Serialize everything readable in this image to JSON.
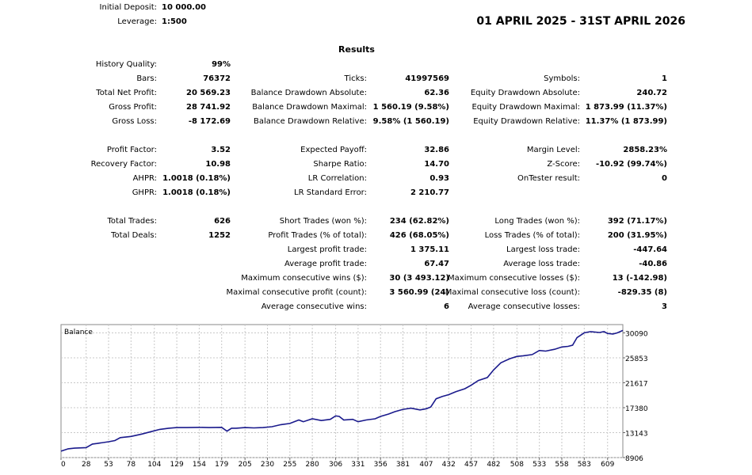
{
  "header": {
    "initial_deposit_label": "Initial Deposit:",
    "initial_deposit_value": "10 000.00",
    "leverage_label": "Leverage:",
    "leverage_value": "1:500",
    "period": "01 APRIL 2025 - 31ST APRIL 2026",
    "results_title": "Results"
  },
  "stats": [
    {
      "col": 0,
      "row": 0,
      "label": "History Quality:",
      "value": "99%"
    },
    {
      "col": 0,
      "row": 1,
      "label": "Bars:",
      "value": "76372"
    },
    {
      "col": 1,
      "row": 1,
      "label": "Ticks:",
      "value": "41997569"
    },
    {
      "col": 2,
      "row": 1,
      "label": "Symbols:",
      "value": "1"
    },
    {
      "col": 0,
      "row": 2,
      "label": "Total Net Profit:",
      "value": "20 569.23"
    },
    {
      "col": 1,
      "row": 2,
      "label": "Balance Drawdown Absolute:",
      "value": "62.36"
    },
    {
      "col": 2,
      "row": 2,
      "label": "Equity Drawdown Absolute:",
      "value": "240.72"
    },
    {
      "col": 0,
      "row": 3,
      "label": "Gross Profit:",
      "value": "28 741.92"
    },
    {
      "col": 1,
      "row": 3,
      "label": "Balance Drawdown Maximal:",
      "value": "1 560.19 (9.58%)"
    },
    {
      "col": 2,
      "row": 3,
      "label": "Equity Drawdown Maximal:",
      "value": "1 873.99 (11.37%)"
    },
    {
      "col": 0,
      "row": 4,
      "label": "Gross Loss:",
      "value": "-8 172.69"
    },
    {
      "col": 1,
      "row": 4,
      "label": "Balance Drawdown Relative:",
      "value": "9.58% (1 560.19)"
    },
    {
      "col": 2,
      "row": 4,
      "label": "Equity Drawdown Relative:",
      "value": "11.37% (1 873.99)"
    },
    {
      "col": 0,
      "row": 6,
      "label": "Profit Factor:",
      "value": "3.52"
    },
    {
      "col": 1,
      "row": 6,
      "label": "Expected Payoff:",
      "value": "32.86"
    },
    {
      "col": 2,
      "row": 6,
      "label": "Margin Level:",
      "value": "2858.23%"
    },
    {
      "col": 0,
      "row": 7,
      "label": "Recovery Factor:",
      "value": "10.98"
    },
    {
      "col": 1,
      "row": 7,
      "label": "Sharpe Ratio:",
      "value": "14.70"
    },
    {
      "col": 2,
      "row": 7,
      "label": "Z-Score:",
      "value": "-10.92 (99.74%)"
    },
    {
      "col": 0,
      "row": 8,
      "label": "AHPR:",
      "value": "1.0018 (0.18%)"
    },
    {
      "col": 1,
      "row": 8,
      "label": "LR Correlation:",
      "value": "0.93"
    },
    {
      "col": 2,
      "row": 8,
      "label": "OnTester result:",
      "value": "0"
    },
    {
      "col": 0,
      "row": 9,
      "label": "GHPR:",
      "value": "1.0018 (0.18%)"
    },
    {
      "col": 1,
      "row": 9,
      "label": "LR Standard Error:",
      "value": "2 210.77"
    },
    {
      "col": 0,
      "row": 11,
      "label": "Total Trades:",
      "value": "626"
    },
    {
      "col": 1,
      "row": 11,
      "label": "Short Trades (won %):",
      "value": "234 (62.82%)"
    },
    {
      "col": 2,
      "row": 11,
      "label": "Long Trades (won %):",
      "value": "392 (71.17%)"
    },
    {
      "col": 0,
      "row": 12,
      "label": "Total Deals:",
      "value": "1252"
    },
    {
      "col": 1,
      "row": 12,
      "label": "Profit Trades (% of total):",
      "value": "426 (68.05%)"
    },
    {
      "col": 2,
      "row": 12,
      "label": "Loss Trades (% of total):",
      "value": "200 (31.95%)"
    },
    {
      "col": 1,
      "row": 13,
      "label": "Largest profit trade:",
      "value": "1 375.11"
    },
    {
      "col": 2,
      "row": 13,
      "label": "Largest loss trade:",
      "value": "-447.64"
    },
    {
      "col": 1,
      "row": 14,
      "label": "Average profit trade:",
      "value": "67.47"
    },
    {
      "col": 2,
      "row": 14,
      "label": "Average loss trade:",
      "value": "-40.86"
    },
    {
      "col": 1,
      "row": 15,
      "label": "Maximum consecutive wins ($):",
      "value": "30 (3 493.12)"
    },
    {
      "col": 2,
      "row": 15,
      "label": "Maximum consecutive losses ($):",
      "value": "13 (-142.98)"
    },
    {
      "col": 1,
      "row": 16,
      "label": "Maximal consecutive profit (count):",
      "value": "3 560.99 (24)"
    },
    {
      "col": 2,
      "row": 16,
      "label": "Maximal consecutive loss (count):",
      "value": "-829.35 (8)"
    },
    {
      "col": 1,
      "row": 17,
      "label": "Average consecutive wins:",
      "value": "6"
    },
    {
      "col": 2,
      "row": 17,
      "label": "Average consecutive losses:",
      "value": "3"
    }
  ],
  "chart_data": {
    "type": "line",
    "title": "Balance",
    "line_color": "#1a1a8c",
    "grid": true,
    "xlim": [
      0,
      626
    ],
    "ylim": [
      8906,
      31500
    ],
    "x_ticks": [
      0,
      28,
      53,
      78,
      104,
      129,
      154,
      179,
      205,
      230,
      255,
      280,
      306,
      331,
      356,
      381,
      407,
      432,
      457,
      482,
      508,
      533,
      558,
      583,
      609
    ],
    "y_ticks": [
      8906,
      13143,
      17380,
      21617,
      25853,
      30090
    ],
    "series": [
      {
        "x": [
          0,
          8,
          15,
          28,
          35,
          40,
          53,
          60,
          66,
          78,
          90,
          100,
          110,
          120,
          129,
          140,
          154,
          165,
          179,
          185,
          190,
          195,
          205,
          215,
          225,
          235,
          245,
          255,
          265,
          270,
          280,
          290,
          300,
          306,
          310,
          315,
          325,
          331,
          340,
          350,
          356,
          365,
          372,
          381,
          390,
          400,
          407,
          412,
          418,
          425,
          432,
          440,
          450,
          457,
          465,
          475,
          482,
          490,
          500,
          508,
          515,
          525,
          533,
          540,
          550,
          558,
          565,
          570,
          575,
          583,
          590,
          600,
          605,
          609,
          615,
          620,
          626
        ],
        "values": [
          10000,
          10400,
          10500,
          10600,
          11200,
          11300,
          11600,
          11800,
          12300,
          12500,
          12900,
          13300,
          13700,
          13900,
          14000,
          14000,
          14050,
          14000,
          14050,
          13400,
          13900,
          13900,
          14000,
          13950,
          14000,
          14150,
          14500,
          14700,
          15300,
          15000,
          15500,
          15200,
          15400,
          16000,
          15900,
          15300,
          15400,
          15000,
          15300,
          15500,
          15900,
          16300,
          16700,
          17100,
          17300,
          17000,
          17200,
          17500,
          18900,
          19300,
          19600,
          20100,
          20600,
          21200,
          22000,
          22500,
          23800,
          25000,
          25700,
          26100,
          26200,
          26400,
          27100,
          27000,
          27300,
          27700,
          27800,
          28000,
          29300,
          30100,
          30300,
          30150,
          30300,
          30000,
          29900,
          30100,
          30500
        ]
      }
    ]
  }
}
